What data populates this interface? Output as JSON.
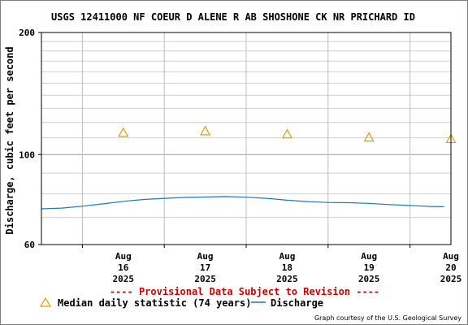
{
  "chart_data": {
    "type": "line",
    "title": "USGS 12411000 NF COEUR D ALENE R AB SHOSHONE CK NR PRICHARD ID",
    "ylabel": "Discharge, cubic feet per second",
    "xlabel": "",
    "y_scale": "log",
    "ylim": [
      60,
      200
    ],
    "y_ticks": [
      "60",
      "100",
      "200"
    ],
    "x_range": [
      "2025-08-15T12:00",
      "2025-08-20T12:00"
    ],
    "x_ticks": [
      {
        "month": "Aug",
        "day": "16",
        "year": "2025",
        "date": "2025-08-16"
      },
      {
        "month": "Aug",
        "day": "17",
        "year": "2025",
        "date": "2025-08-17"
      },
      {
        "month": "Aug",
        "day": "18",
        "year": "2025",
        "date": "2025-08-18"
      },
      {
        "month": "Aug",
        "day": "19",
        "year": "2025",
        "date": "2025-08-19"
      },
      {
        "month": "Aug",
        "day": "20",
        "year": "2025",
        "date": "2025-08-20"
      }
    ],
    "grid": true,
    "series": [
      {
        "name": "Median daily statistic (74 years)",
        "type": "scatter",
        "marker": "triangle",
        "color": "#e69a00",
        "points": [
          {
            "x": "2025-08-16",
            "y": 113
          },
          {
            "x": "2025-08-17",
            "y": 114
          },
          {
            "x": "2025-08-18",
            "y": 112
          },
          {
            "x": "2025-08-19",
            "y": 110
          },
          {
            "x": "2025-08-20",
            "y": 109
          }
        ]
      },
      {
        "name": "Discharge",
        "type": "line",
        "color": "#1f77b4",
        "points": [
          {
            "x": "2025-08-15T12:00",
            "y": 73.5
          },
          {
            "x": "2025-08-15T18:00",
            "y": 73.8
          },
          {
            "x": "2025-08-16T00:00",
            "y": 74.6
          },
          {
            "x": "2025-08-16T06:00",
            "y": 75.6
          },
          {
            "x": "2025-08-16T12:00",
            "y": 76.7
          },
          {
            "x": "2025-08-16T18:00",
            "y": 77.5
          },
          {
            "x": "2025-08-17T00:00",
            "y": 78.0
          },
          {
            "x": "2025-08-17T06:00",
            "y": 78.4
          },
          {
            "x": "2025-08-17T12:00",
            "y": 78.6
          },
          {
            "x": "2025-08-17T18:00",
            "y": 78.8
          },
          {
            "x": "2025-08-18T00:00",
            "y": 78.5
          },
          {
            "x": "2025-08-18T06:00",
            "y": 78.0
          },
          {
            "x": "2025-08-18T12:00",
            "y": 77.2
          },
          {
            "x": "2025-08-18T18:00",
            "y": 76.6
          },
          {
            "x": "2025-08-19T00:00",
            "y": 76.2
          },
          {
            "x": "2025-08-19T06:00",
            "y": 76.1
          },
          {
            "x": "2025-08-19T12:00",
            "y": 75.8
          },
          {
            "x": "2025-08-19T18:00",
            "y": 75.3
          },
          {
            "x": "2025-08-20T00:00",
            "y": 74.9
          },
          {
            "x": "2025-08-20T06:00",
            "y": 74.5
          },
          {
            "x": "2025-08-20T10:00",
            "y": 74.4
          }
        ]
      }
    ]
  },
  "notice": "---- Provisional Data Subject to Revision ----",
  "notice_color": "#cc0000",
  "legend": {
    "median_label": "Median daily statistic (74 years)",
    "discharge_label": "Discharge"
  },
  "credit": "Graph courtesy of the U.S. Geological Survey"
}
